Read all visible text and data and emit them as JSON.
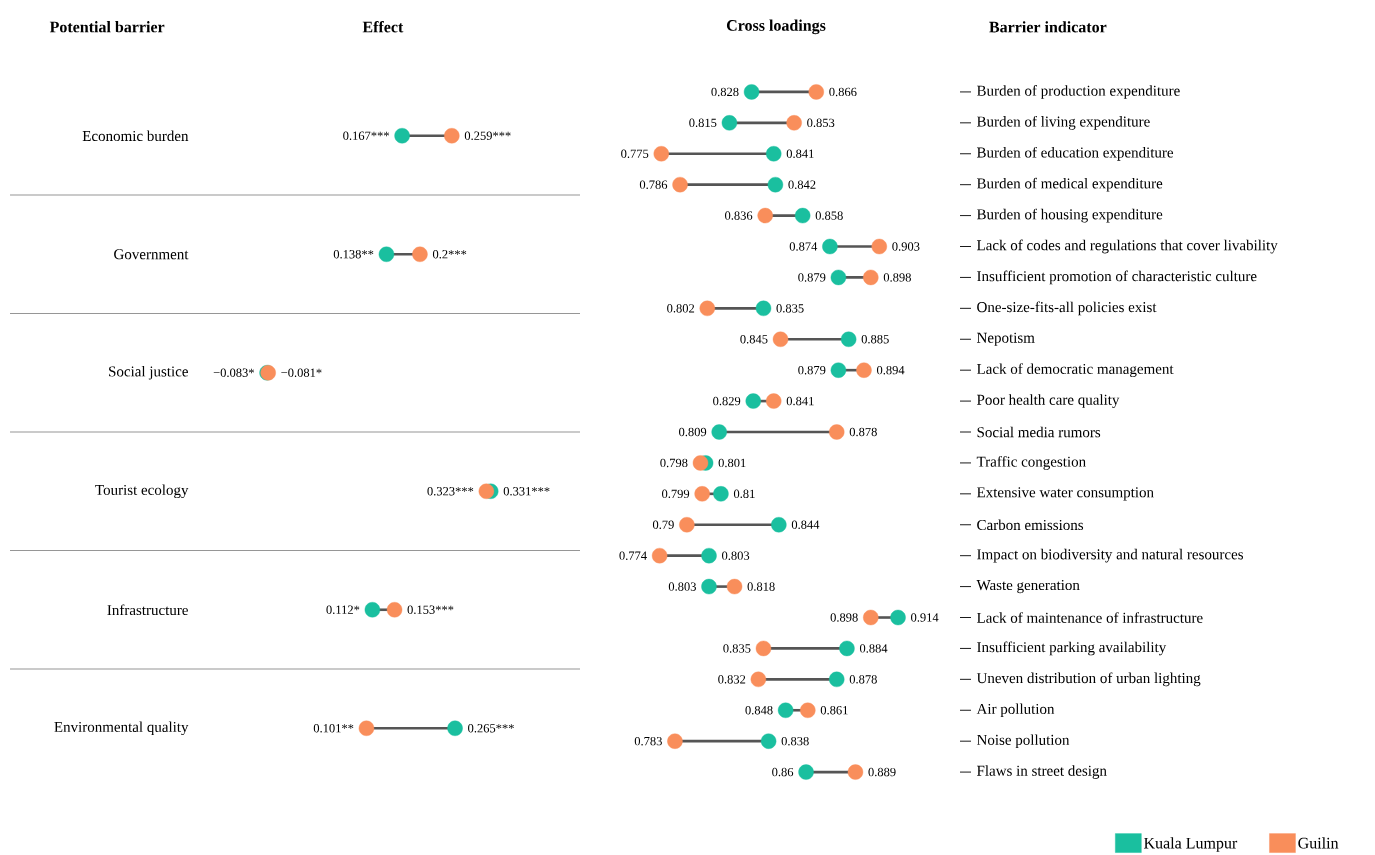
{
  "chart_data": [
    {
      "type": "scatter",
      "orientation": "horizontal",
      "title": "Effect",
      "ylabel": "Potential barrier",
      "marker": "circle",
      "tick_labels": "y",
      "categories": [
        "Economic burden",
        "Government",
        "Social justice",
        "Tourist ecology",
        "Infrastructure",
        "Environmental quality"
      ],
      "series": [
        {
          "color": "#1abf9f",
          "values": [
            0.167,
            0.138,
            -0.083,
            0.331,
            0.112,
            0.265
          ],
          "value_labels": [
            "0.167***",
            "0.138**",
            "−0.083*",
            "0.331***",
            "0.112*",
            "0.265***"
          ]
        },
        {
          "color": "#f98e5b",
          "values": [
            0.259,
            0.2,
            -0.081,
            0.323,
            0.153,
            0.101
          ],
          "value_labels": [
            "0.259***",
            "0.2***",
            "−0.081*",
            "0.323***",
            "0.153***",
            "0.101**"
          ]
        }
      ]
    },
    {
      "type": "scatter",
      "orientation": "horizontal",
      "title": "Cross loadings",
      "ylabel": "Barrier indicator",
      "marker": "circle",
      "tick_labels": "y",
      "legend": "bottom right",
      "categories": [
        "Burden of production expenditure",
        "Burden of living expenditure",
        "Burden of education expenditure",
        "Burden of medical expenditure",
        "Burden of housing expenditure",
        "Lack of codes and regulations that cover livability",
        "Insufficient promotion of characteristic culture",
        "One-size-fits-all policies exist",
        "Nepotism",
        "Lack of democratic management",
        "Poor health care quality",
        "Social media rumors",
        "Traffic congestion",
        "Extensive water consumption",
        "Carbon emissions",
        "Impact on biodiversity and natural resources",
        "Waste generation",
        "Lack of maintenance of infrastructure",
        "Insufficient parking availability",
        "Uneven distribution of urban lighting",
        "Air pollution",
        "Noise pollution",
        "Flaws in street design"
      ],
      "series": [
        {
          "name": "Kuala Lumpur",
          "color": "#1abf9f",
          "values": [
            0.828,
            0.815,
            0.841,
            0.842,
            0.858,
            0.874,
            0.879,
            0.835,
            0.885,
            0.879,
            0.829,
            0.809,
            0.801,
            0.81,
            0.844,
            0.803,
            0.803,
            0.914,
            0.884,
            0.878,
            0.848,
            0.838,
            0.86
          ],
          "value_labels": [
            "0.828",
            "0.815",
            "0.841",
            "0.842",
            "0.858",
            "0.874",
            "0.879",
            "0.835",
            "0.885",
            "0.879",
            "0.829",
            "0.809",
            "0.801",
            "0.81",
            "0.844",
            "0.803",
            "0.803",
            "0.914",
            "0.884",
            "0.878",
            "0.848",
            "0.838",
            "0.86"
          ]
        },
        {
          "name": "Guilin",
          "color": "#f98e5b",
          "values": [
            0.866,
            0.853,
            0.775,
            0.786,
            0.836,
            0.903,
            0.898,
            0.802,
            0.845,
            0.894,
            0.841,
            0.878,
            0.798,
            0.799,
            0.79,
            0.774,
            0.818,
            0.898,
            0.835,
            0.832,
            0.861,
            0.783,
            0.889
          ],
          "value_labels": [
            "0.866",
            "0.853",
            "0.775",
            "0.786",
            "0.836",
            "0.903",
            "0.898",
            "0.802",
            "0.845",
            "0.894",
            "0.841",
            "0.878",
            "0.798",
            "0.799",
            "0.79",
            "0.774",
            "0.818",
            "0.898",
            "0.835",
            "0.832",
            "0.861",
            "0.783",
            "0.889"
          ]
        }
      ]
    }
  ]
}
